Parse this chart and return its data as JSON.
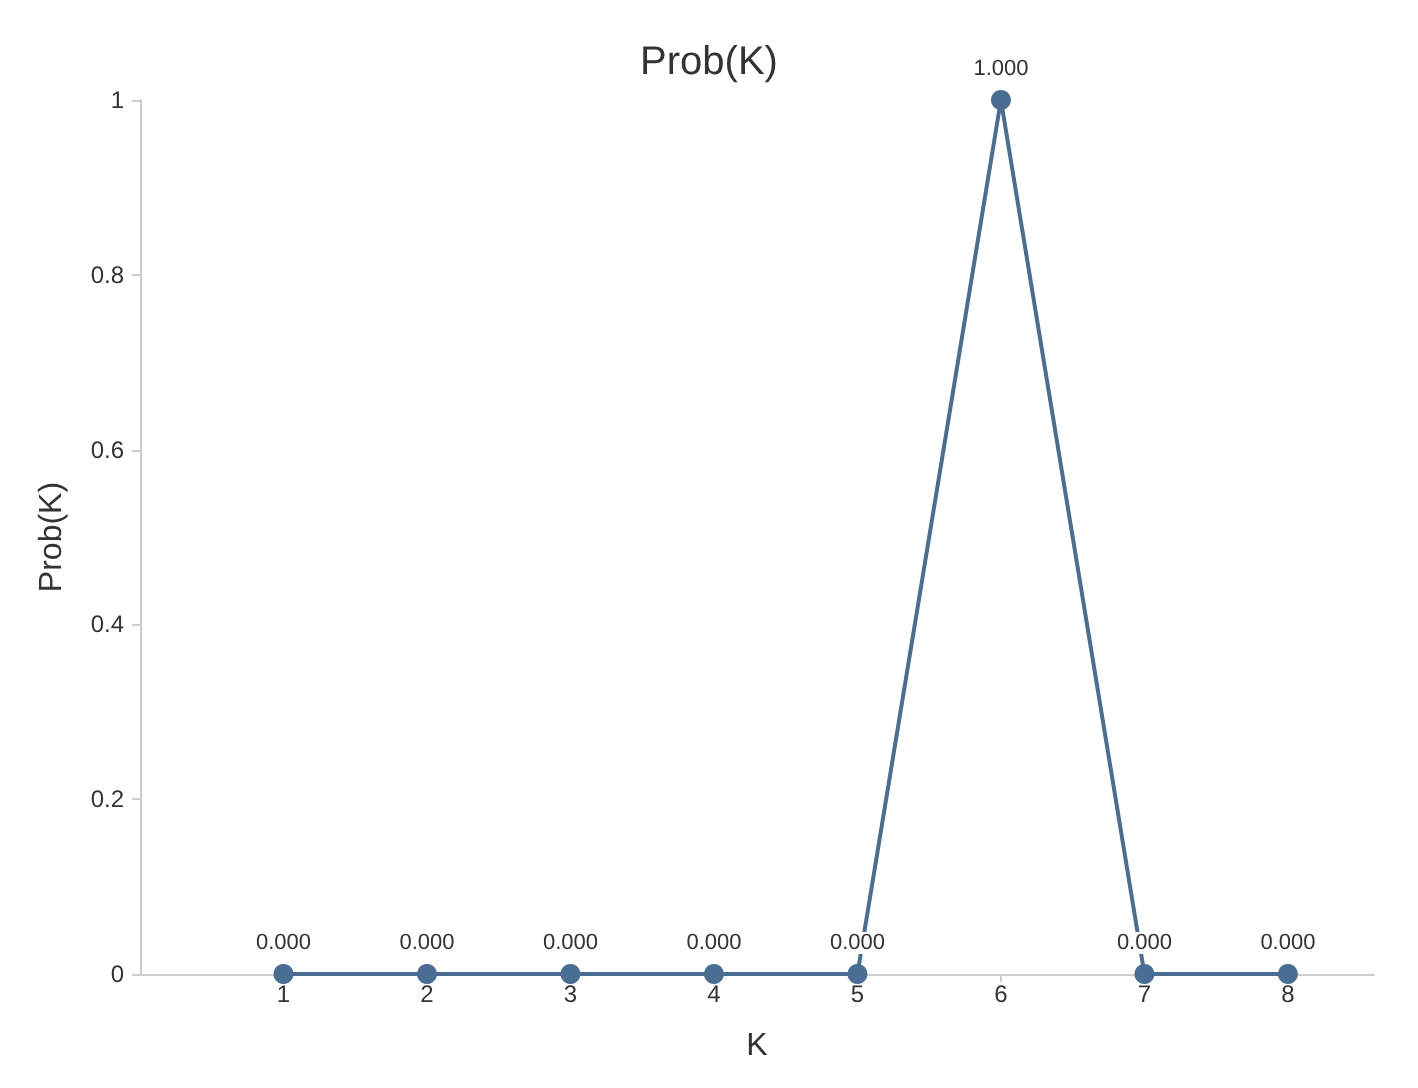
{
  "chart_data": {
    "type": "line",
    "title": "Prob(K)",
    "xlabel": "K",
    "ylabel": "Prob(K)",
    "x": [
      1,
      2,
      3,
      4,
      5,
      6,
      7,
      8
    ],
    "series": [
      {
        "color": "#4a6d94",
        "values": [
          0,
          0,
          0,
          0,
          0,
          1,
          0,
          0
        ],
        "value_labels": [
          "0.000",
          "0.000",
          "0.000",
          "0.000",
          "0.000",
          "1.000",
          "0.000",
          "0.000"
        ]
      }
    ],
    "xlim": [
      0,
      8.6
    ],
    "xticks": [
      1,
      2,
      3,
      4,
      5,
      6,
      7,
      8
    ],
    "ylim": [
      0,
      1
    ],
    "yticks": [
      0,
      0.2,
      0.4,
      0.6,
      0.8,
      1
    ],
    "grid": false,
    "marker": "circle",
    "line_style": "solid"
  }
}
